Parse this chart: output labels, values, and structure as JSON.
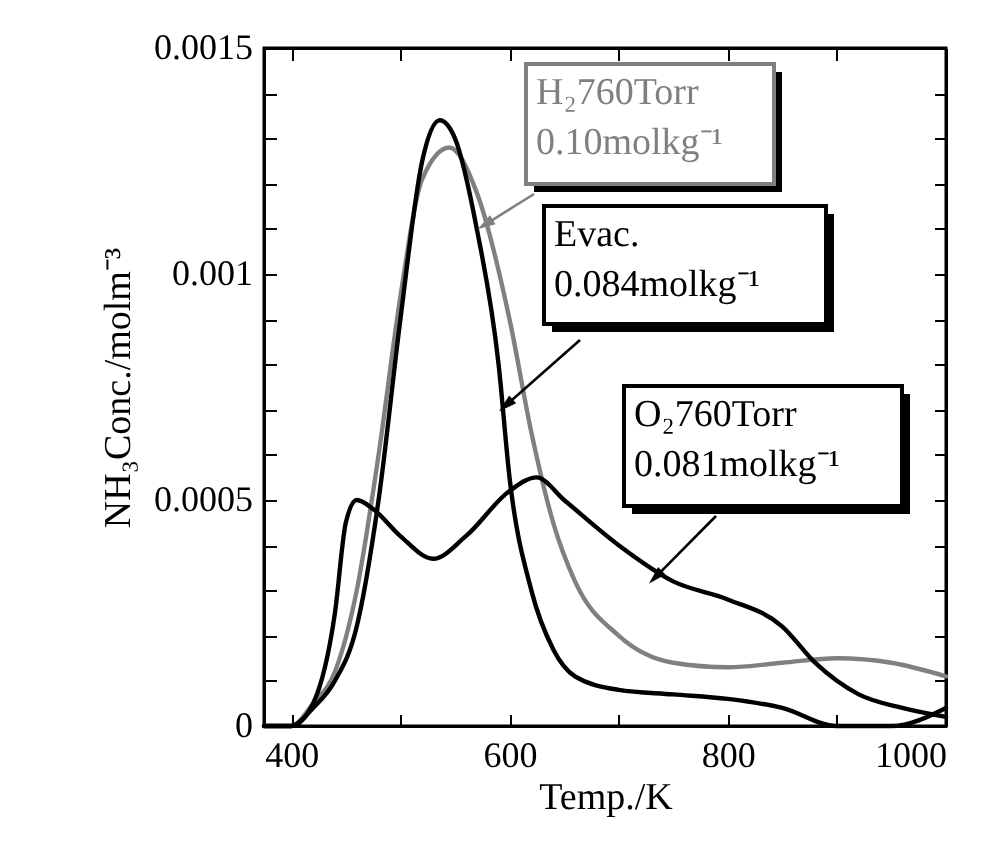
{
  "chart_data": {
    "type": "line",
    "xlabel": "Temp./K",
    "ylabel": "NH₃Conc./molm⁻³",
    "xlim": [
      375,
      1000
    ],
    "xticks": [
      400,
      {
        "value": 500,
        "label": null
      },
      600,
      {
        "value": 700,
        "label": null
      },
      800,
      {
        "value": 900,
        "label": null
      },
      1000
    ],
    "ylim": [
      0,
      0.0015
    ],
    "yticks": [
      0,
      {
        "value": 0.0001,
        "label": null
      },
      {
        "value": 0.0002,
        "label": null
      },
      {
        "value": 0.0003,
        "label": null
      },
      {
        "value": 0.0004,
        "label": null
      },
      0.0005,
      {
        "value": 0.0006,
        "label": null
      },
      {
        "value": 0.0007,
        "label": null
      },
      {
        "value": 0.0008,
        "label": null
      },
      {
        "value": 0.0009,
        "label": null
      },
      0.001,
      {
        "value": 0.0011,
        "label": null
      },
      {
        "value": 0.0012,
        "label": null
      },
      {
        "value": 0.0013,
        "label": null
      },
      {
        "value": 0.0014,
        "label": null
      },
      0.0015
    ],
    "grid": false,
    "legend": false,
    "line_style": "solid",
    "marker": "none",
    "annotations": [
      {
        "text": "H₂760Torr\n0.10molkg⁻¹",
        "x": 578,
        "y": 0.00111
      },
      {
        "text": "Evac.\n0.084molkg⁻¹",
        "x": 597,
        "y": 0.00071
      },
      {
        "text": "O₂760Torr\n0.081molkg⁻¹",
        "x": 734,
        "y": 0.00033
      }
    ],
    "series": [
      {
        "color": "#808080",
        "x": [
          375,
          400,
          420,
          440,
          460,
          480,
          500,
          520,
          545,
          570,
          600,
          620,
          640,
          660,
          700,
          750,
          800,
          850,
          900,
          950,
          1000
        ],
        "values": [
          0,
          0,
          5e-05,
          0.00012,
          0.0003,
          0.0006,
          0.00095,
          0.00121,
          0.00128,
          0.00118,
          0.0009,
          0.00065,
          0.00045,
          0.00032,
          0.0002,
          0.00014,
          0.00013,
          0.00014,
          0.00015,
          0.00014,
          0.00011
        ]
      },
      {
        "color": "#000000",
        "x": [
          375,
          400,
          420,
          440,
          460,
          480,
          500,
          520,
          536,
          550,
          570,
          590,
          600,
          620,
          640,
          660,
          700,
          750,
          800,
          850,
          900,
          950,
          1000
        ],
        "values": [
          0,
          0,
          4e-05,
          0.0001,
          0.00022,
          0.0005,
          0.0009,
          0.00125,
          0.00134,
          0.0013,
          0.0011,
          0.0008,
          0.00055,
          0.0003,
          0.00017,
          0.00011,
          8e-05,
          7e-05,
          6e-05,
          4e-05,
          0,
          0,
          4e-05
        ]
      },
      {
        "color": "#000000",
        "x": [
          375,
          400,
          420,
          440,
          450,
          460,
          475,
          500,
          530,
          560,
          600,
          625,
          650,
          700,
          750,
          800,
          850,
          880,
          920,
          960,
          1000
        ],
        "values": [
          0,
          0,
          5e-05,
          0.00025,
          0.00045,
          0.0005,
          0.00048,
          0.00042,
          0.00037,
          0.00042,
          0.00052,
          0.00055,
          0.0005,
          0.0004,
          0.00032,
          0.00028,
          0.00022,
          0.00014,
          7e-05,
          4e-05,
          2e-05
        ]
      }
    ]
  }
}
